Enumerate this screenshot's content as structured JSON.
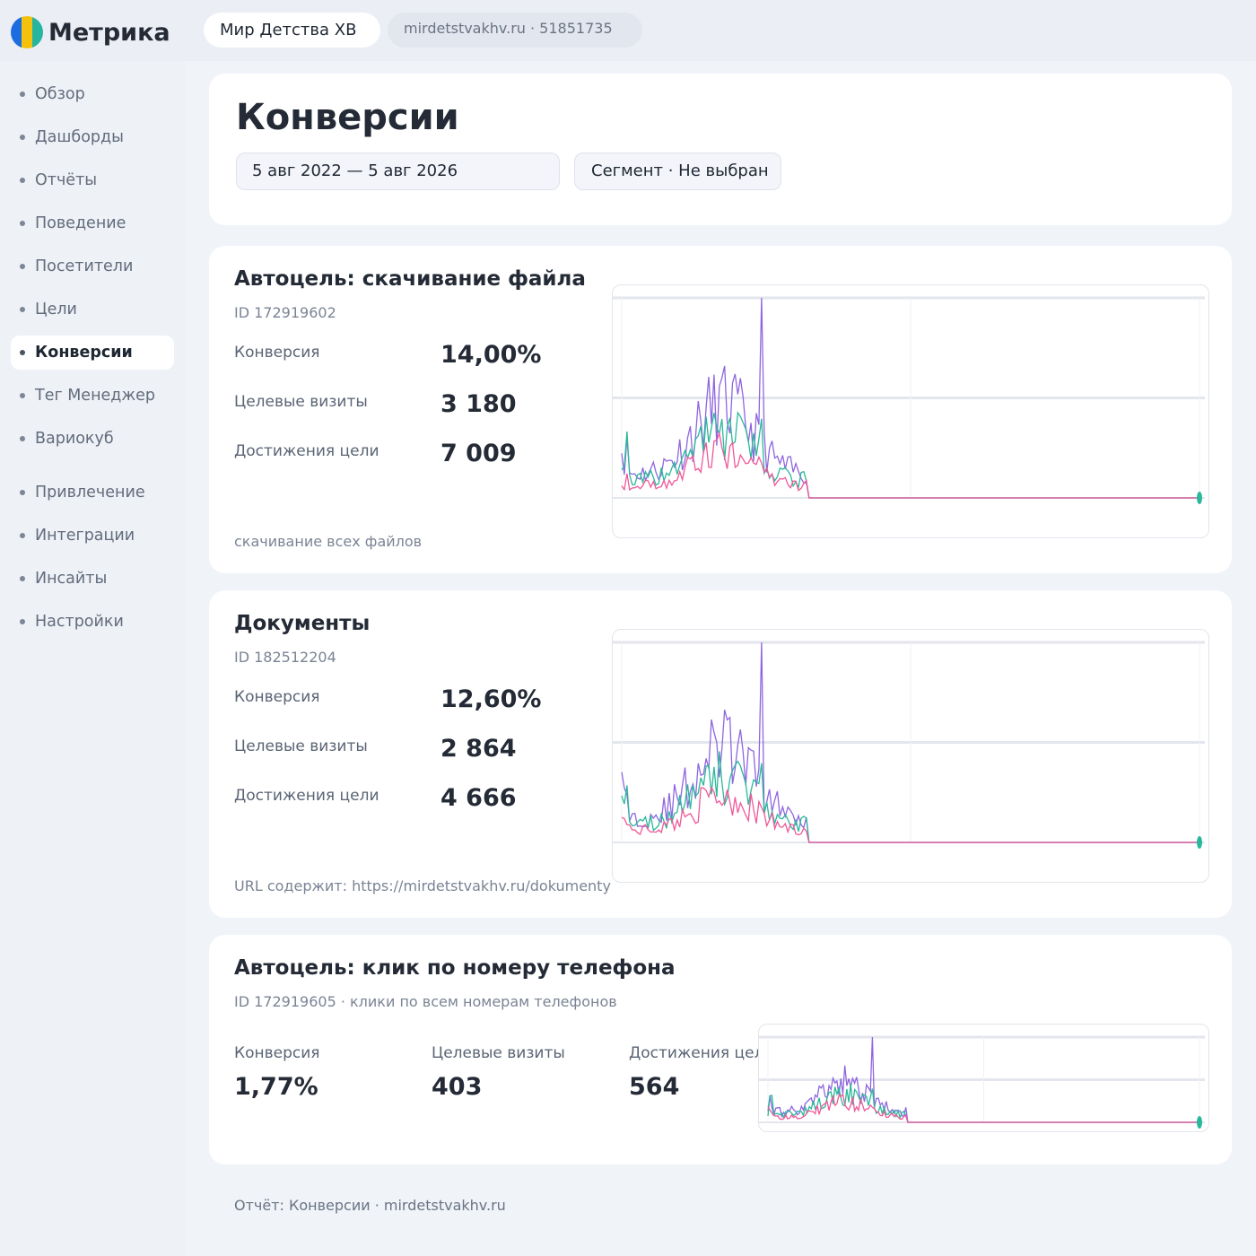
{
  "app": {
    "logo_text": "Метрика",
    "counter_name": "Мир Детства ХВ",
    "site_label": "mirdetstvakhv.ru · 51851735",
    "logo_colors": [
      "#1c6ee0",
      "#f4c20d",
      "#25b5a0"
    ]
  },
  "sidebar": {
    "items": [
      {
        "label": "Обзор"
      },
      {
        "label": "Дашборды"
      },
      {
        "label": "Отчёты"
      },
      {
        "label": "Поведение"
      },
      {
        "label": "Посетители"
      },
      {
        "label": "Цели"
      },
      {
        "label": "Конверсии",
        "active": true
      },
      {
        "label": "Тег Менеджер"
      },
      {
        "label": "Вариокуб"
      },
      {
        "label": "Привлечение"
      },
      {
        "label": "Интеграции"
      },
      {
        "label": "Инсайты"
      },
      {
        "label": "Настройки"
      }
    ]
  },
  "header": {
    "title": "Конверсии",
    "date_range": "5 авг 2022 — 5 авг 2026",
    "segment": "Сегмент · Не выбран"
  },
  "goals": [
    {
      "title": "Автоцель: скачивание файла",
      "id": "ID 172919602",
      "condition": "скачивание всех файлов",
      "metrics": [
        {
          "label": "Конверсия",
          "value": "14,00%"
        },
        {
          "label": "Целевые визиты",
          "value": "3 180"
        },
        {
          "label": "Достижения цели",
          "value": "7 009"
        }
      ]
    },
    {
      "title": "Документы",
      "id": "ID 182512204",
      "condition": "URL содержит: https://mirdetstvakhv.ru/dokumenty",
      "metrics": [
        {
          "label": "Конверсия",
          "value": "12,60%"
        },
        {
          "label": "Целевые визиты",
          "value": "2 864"
        },
        {
          "label": "Достижения цели",
          "value": "4 666"
        }
      ]
    },
    {
      "title": "Автоцель: клик по номеру телефона",
      "id": "ID 172919605 · клики по всем номерам телефонов",
      "metrics": [
        {
          "label": "Конверсия",
          "value": "1,77%"
        },
        {
          "label": "Целевые визиты",
          "value": "403"
        },
        {
          "label": "Достижения цели",
          "value": "564"
        }
      ]
    }
  ],
  "chart_colors": {
    "purple": "#8f66e0",
    "teal": "#2bb89a",
    "pink": "#f0589a",
    "grid": "#e4e6ee"
  },
  "footer": "Отчёт: Конверсии · mirdetstvakhv.ru"
}
